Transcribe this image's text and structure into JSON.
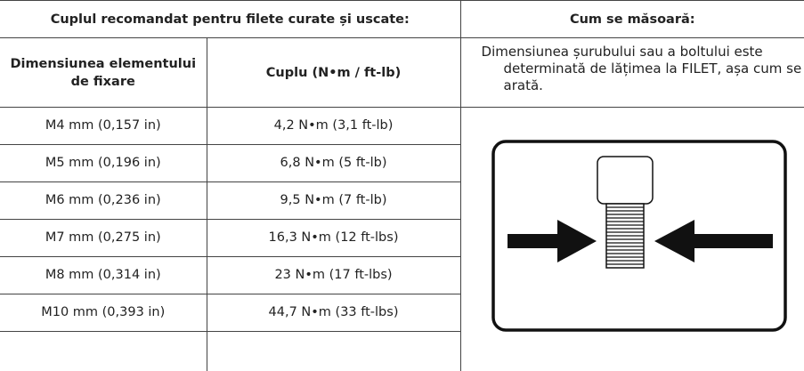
{
  "header": {
    "left": "Cuplul recomandat pentru filete curate și uscate:",
    "right": "Cum se măsoară:"
  },
  "table": {
    "columns": [
      "Dimensiunea elementului de fixare",
      "Cuplu (N•m / ft-lb)"
    ],
    "rows": [
      [
        "M4 mm (0,157 in)",
        "4,2 N•m (3,1 ft-lb)"
      ],
      [
        "M5 mm (0,196 in)",
        "6,8 N•m (5 ft-lb)"
      ],
      [
        "M6 mm (0,236 in)",
        "9,5 N•m (7 ft-lb)"
      ],
      [
        "M7 mm (0,275 in)",
        "16,3 N•m (12 ft-lbs)"
      ],
      [
        "M8 mm (0,314 in)",
        "23 N•m (17 ft-lbs)"
      ],
      [
        "M10 mm (0,393 in)",
        "44,7 N•m (33 ft-lbs)"
      ]
    ]
  },
  "description": "Dimensiunea șurubului sau a boltului este determinată de lățimea la FILET, așa cum se arată."
}
